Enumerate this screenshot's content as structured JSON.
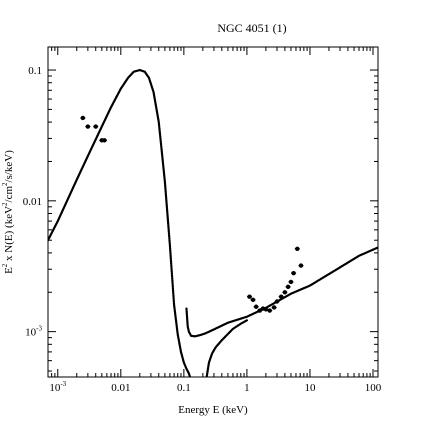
{
  "chart_data": {
    "type": "scatter",
    "title": "NGC 4051 (1)",
    "xlabel": "Energy E (keV)",
    "ylabel": {
      "parts": [
        "E",
        "2",
        " x N(E) (keV",
        "2",
        "/cm",
        "2",
        "/s/keV)"
      ]
    },
    "xscale": "log",
    "yscale": "log",
    "xlim": [
      0.0007,
      120
    ],
    "ylim": [
      0.00045,
      0.15
    ],
    "grid": false,
    "x_ticks": [
      {
        "value": 0.001,
        "base": "10",
        "exp": "-3"
      },
      {
        "value": 0.01,
        "label": "0.01"
      },
      {
        "value": 0.1,
        "label": "0.1"
      },
      {
        "value": 1,
        "label": "1"
      },
      {
        "value": 10,
        "label": "10"
      },
      {
        "value": 100,
        "label": "100"
      }
    ],
    "y_ticks": [
      {
        "value": 0.001,
        "base": "10",
        "exp": "-3"
      },
      {
        "value": 0.01,
        "label": "0.01"
      },
      {
        "value": 0.1,
        "label": "0.1"
      }
    ],
    "series": [
      {
        "kind": "dotted-curve",
        "x": [
          0.0007,
          0.001,
          0.002,
          0.003,
          0.005,
          0.007,
          0.01,
          0.013,
          0.016,
          0.02,
          0.024,
          0.028,
          0.033,
          0.04,
          0.05,
          0.06,
          0.07,
          0.08,
          0.09,
          0.1,
          0.11,
          0.12,
          0.125
        ],
        "y": [
          0.005,
          0.007,
          0.0145,
          0.022,
          0.037,
          0.052,
          0.072,
          0.087,
          0.097,
          0.1,
          0.097,
          0.087,
          0.068,
          0.04,
          0.014,
          0.0046,
          0.0016,
          0.00095,
          0.0007,
          0.00058,
          0.00052,
          0.00048,
          0.00045
        ]
      },
      {
        "kind": "dotted-curve",
        "x": [
          0.11,
          0.115,
          0.12,
          0.13,
          0.15,
          0.18,
          0.22,
          0.3,
          0.5,
          1,
          2,
          5,
          10,
          30,
          60,
          120
        ],
        "y": [
          0.0015,
          0.0011,
          0.001,
          0.00093,
          0.00092,
          0.00094,
          0.00097,
          0.00104,
          0.00117,
          0.0013,
          0.00152,
          0.00195,
          0.00225,
          0.0031,
          0.0038,
          0.0044
        ]
      },
      {
        "kind": "dotted-curve",
        "x": [
          0.23,
          0.25,
          0.28,
          0.32,
          0.4,
          0.5,
          0.6,
          0.8,
          1.0
        ],
        "y": [
          0.00045,
          0.00058,
          0.00068,
          0.00076,
          0.00086,
          0.00096,
          0.00105,
          0.00115,
          0.00122
        ]
      },
      {
        "kind": "points",
        "x": [
          0.0025,
          0.003,
          0.004,
          0.005,
          0.0055,
          1.1,
          1.25,
          1.4,
          1.6,
          1.8,
          2.0,
          2.3,
          2.7,
          3.0,
          3.5,
          4.0,
          4.5,
          5.0,
          5.5,
          6.3,
          7.2
        ],
        "y": [
          0.043,
          0.037,
          0.037,
          0.029,
          0.029,
          0.00185,
          0.00175,
          0.00155,
          0.00145,
          0.0015,
          0.00148,
          0.00145,
          0.00153,
          0.0017,
          0.00185,
          0.002,
          0.0022,
          0.0024,
          0.0028,
          0.0043,
          0.0032
        ]
      }
    ]
  }
}
